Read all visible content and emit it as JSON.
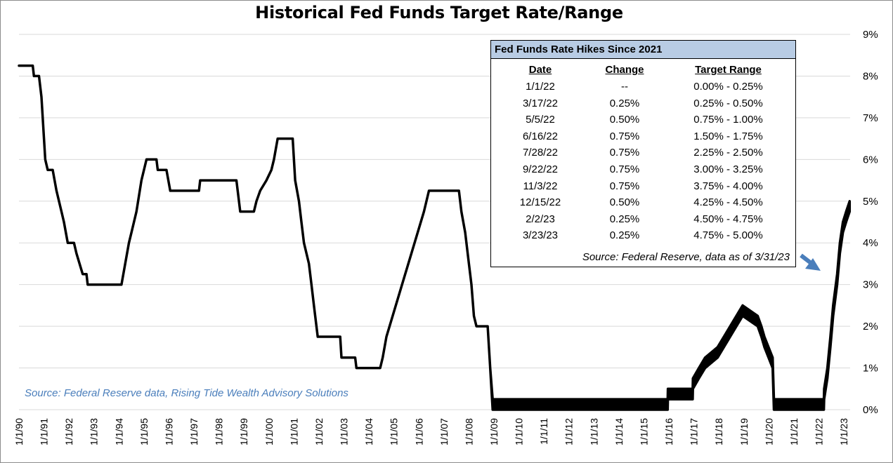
{
  "title": "Historical Fed Funds Target Rate/Range",
  "source_note": "Source: Federal Reserve data, Rising Tide Wealth Advisory Solutions",
  "table": {
    "title": "Fed Funds Rate Hikes Since 2021",
    "headers": [
      "Date",
      "Change",
      "Target Range"
    ],
    "rows": [
      [
        "1/1/22",
        "--",
        "0.00% - 0.25%"
      ],
      [
        "3/17/22",
        "0.25%",
        "0.25% - 0.50%"
      ],
      [
        "5/5/22",
        "0.50%",
        "0.75% - 1.00%"
      ],
      [
        "6/16/22",
        "0.75%",
        "1.50% - 1.75%"
      ],
      [
        "7/28/22",
        "0.75%",
        "2.25% - 2.50%"
      ],
      [
        "9/22/22",
        "0.75%",
        "3.00% - 3.25%"
      ],
      [
        "11/3/22",
        "0.75%",
        "3.75% - 4.00%"
      ],
      [
        "12/15/22",
        "0.50%",
        "4.25% - 4.50%"
      ],
      [
        "2/2/23",
        "0.25%",
        "4.50% - 4.75%"
      ],
      [
        "3/23/23",
        "0.25%",
        "4.75% - 5.00%"
      ]
    ],
    "source": "Source: Federal Reserve, data as of 3/31/23"
  },
  "chart_data": {
    "type": "line",
    "title": "Historical Fed Funds Target Rate/Range",
    "xlabel": "",
    "ylabel": "",
    "ylim": [
      0,
      9
    ],
    "xlim": [
      1990,
      2023.25
    ],
    "y_tick_labels": [
      "0%",
      "1%",
      "2%",
      "3%",
      "4%",
      "5%",
      "6%",
      "7%",
      "8%",
      "9%"
    ],
    "x_tick_labels": [
      "1/1/90",
      "1/1/91",
      "1/1/92",
      "1/1/93",
      "1/1/94",
      "1/1/95",
      "1/1/96",
      "1/1/97",
      "1/1/98",
      "1/1/99",
      "1/1/00",
      "1/1/01",
      "1/1/02",
      "1/1/03",
      "1/1/04",
      "1/1/05",
      "1/1/06",
      "1/1/07",
      "1/1/08",
      "1/1/09",
      "1/1/10",
      "1/1/11",
      "1/1/12",
      "1/1/13",
      "1/1/14",
      "1/1/15",
      "1/1/16",
      "1/1/17",
      "1/1/18",
      "1/1/19",
      "1/1/20",
      "1/1/21",
      "1/1/22",
      "1/1/23"
    ],
    "grid": true,
    "line_color": "#000000",
    "arrow_color": "#4a7ebb",
    "series": [
      {
        "values": [
          [
            1990.0,
            8.25,
            8.25
          ],
          [
            1990.55,
            8.25,
            8.25
          ],
          [
            1990.6,
            8.0,
            8.0
          ],
          [
            1990.8,
            8.0,
            8.0
          ],
          [
            1990.9,
            7.5,
            7.5
          ],
          [
            1991.0,
            6.5,
            6.5
          ],
          [
            1991.05,
            6.0,
            6.0
          ],
          [
            1991.15,
            5.75,
            5.75
          ],
          [
            1991.35,
            5.75,
            5.75
          ],
          [
            1991.5,
            5.25,
            5.25
          ],
          [
            1991.7,
            4.75,
            4.75
          ],
          [
            1991.8,
            4.5,
            4.5
          ],
          [
            1991.95,
            4.0,
            4.0
          ],
          [
            1992.2,
            4.0,
            4.0
          ],
          [
            1992.3,
            3.75,
            3.75
          ],
          [
            1992.55,
            3.25,
            3.25
          ],
          [
            1992.7,
            3.25,
            3.25
          ],
          [
            1992.75,
            3.0,
            3.0
          ],
          [
            1994.1,
            3.0,
            3.0
          ],
          [
            1994.25,
            3.5,
            3.5
          ],
          [
            1994.4,
            4.0,
            4.0
          ],
          [
            1994.5,
            4.25,
            4.25
          ],
          [
            1994.7,
            4.75,
            4.75
          ],
          [
            1994.9,
            5.5,
            5.5
          ],
          [
            1995.1,
            6.0,
            6.0
          ],
          [
            1995.5,
            6.0,
            6.0
          ],
          [
            1995.55,
            5.75,
            5.75
          ],
          [
            1995.9,
            5.75,
            5.75
          ],
          [
            1996.05,
            5.25,
            5.25
          ],
          [
            1997.2,
            5.25,
            5.25
          ],
          [
            1997.25,
            5.5,
            5.5
          ],
          [
            1998.7,
            5.5,
            5.5
          ],
          [
            1998.75,
            5.25,
            5.25
          ],
          [
            1998.85,
            4.75,
            4.75
          ],
          [
            1999.4,
            4.75,
            4.75
          ],
          [
            1999.5,
            5.0,
            5.0
          ],
          [
            1999.65,
            5.25,
            5.25
          ],
          [
            1999.9,
            5.5,
            5.5
          ],
          [
            2000.1,
            5.75,
            5.75
          ],
          [
            2000.2,
            6.0,
            6.0
          ],
          [
            2000.35,
            6.5,
            6.5
          ],
          [
            2000.95,
            6.5,
            6.5
          ],
          [
            2001.05,
            5.5,
            5.5
          ],
          [
            2001.2,
            5.0,
            5.0
          ],
          [
            2001.3,
            4.5,
            4.5
          ],
          [
            2001.4,
            4.0,
            4.0
          ],
          [
            2001.6,
            3.5,
            3.5
          ],
          [
            2001.7,
            3.0,
            3.0
          ],
          [
            2001.8,
            2.5,
            2.5
          ],
          [
            2001.95,
            1.75,
            1.75
          ],
          [
            2002.85,
            1.75,
            1.75
          ],
          [
            2002.9,
            1.25,
            1.25
          ],
          [
            2003.45,
            1.25,
            1.25
          ],
          [
            2003.5,
            1.0,
            1.0
          ],
          [
            2004.45,
            1.0,
            1.0
          ],
          [
            2004.55,
            1.25,
            1.25
          ],
          [
            2004.7,
            1.75,
            1.75
          ],
          [
            2004.95,
            2.25,
            2.25
          ],
          [
            2005.2,
            2.75,
            2.75
          ],
          [
            2005.45,
            3.25,
            3.25
          ],
          [
            2005.7,
            3.75,
            3.75
          ],
          [
            2005.95,
            4.25,
            4.25
          ],
          [
            2006.2,
            4.75,
            4.75
          ],
          [
            2006.4,
            5.25,
            5.25
          ],
          [
            2007.6,
            5.25,
            5.25
          ],
          [
            2007.7,
            4.75,
            4.75
          ],
          [
            2007.85,
            4.25,
            4.25
          ],
          [
            2008.0,
            3.5,
            3.5
          ],
          [
            2008.1,
            3.0,
            3.0
          ],
          [
            2008.2,
            2.25,
            2.25
          ],
          [
            2008.3,
            2.0,
            2.0
          ],
          [
            2008.75,
            2.0,
            2.0
          ],
          [
            2008.85,
            1.0,
            1.0
          ],
          [
            2008.95,
            0.0,
            0.25
          ],
          [
            2015.95,
            0.0,
            0.25
          ],
          [
            2015.96,
            0.25,
            0.5
          ],
          [
            2016.95,
            0.25,
            0.5
          ],
          [
            2016.96,
            0.5,
            0.75
          ],
          [
            2017.2,
            0.75,
            1.0
          ],
          [
            2017.45,
            1.0,
            1.25
          ],
          [
            2017.95,
            1.25,
            1.5
          ],
          [
            2018.2,
            1.5,
            1.75
          ],
          [
            2018.45,
            1.75,
            2.0
          ],
          [
            2018.7,
            2.0,
            2.25
          ],
          [
            2018.95,
            2.25,
            2.5
          ],
          [
            2019.55,
            2.0,
            2.25
          ],
          [
            2019.7,
            1.75,
            2.0
          ],
          [
            2019.82,
            1.5,
            1.75
          ],
          [
            2020.15,
            1.0,
            1.25
          ],
          [
            2020.2,
            0.0,
            0.25
          ],
          [
            2022.2,
            0.0,
            0.25
          ],
          [
            2022.21,
            0.25,
            0.5
          ],
          [
            2022.34,
            0.75,
            1.0
          ],
          [
            2022.46,
            1.5,
            1.75
          ],
          [
            2022.57,
            2.25,
            2.5
          ],
          [
            2022.73,
            3.0,
            3.25
          ],
          [
            2022.84,
            3.75,
            4.0
          ],
          [
            2022.96,
            4.25,
            4.5
          ],
          [
            2023.09,
            4.5,
            4.75
          ],
          [
            2023.23,
            4.75,
            5.0
          ]
        ]
      }
    ]
  }
}
